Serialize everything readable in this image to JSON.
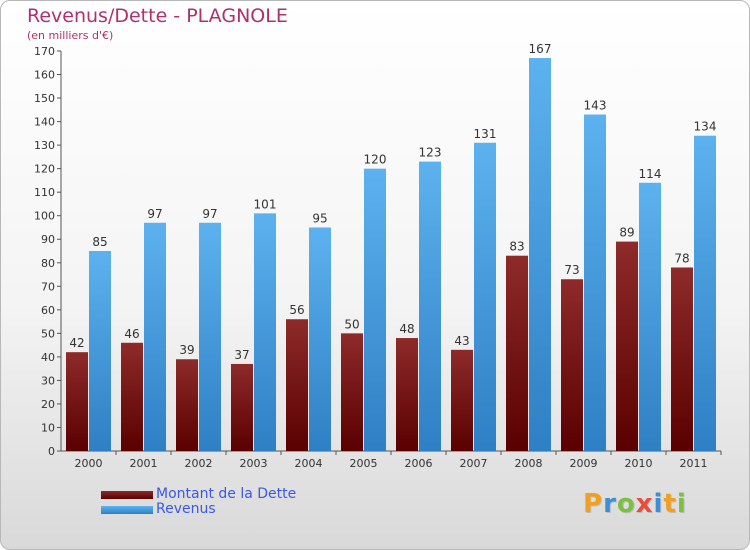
{
  "title": "Revenus/Dette - PLAGNOLE",
  "subtitle": "(en milliers d'€)",
  "legend": {
    "dette": "Montant de la Dette",
    "revenus": "Revenus"
  },
  "logo": {
    "text": "Proxiti",
    "letters": [
      "P",
      "r",
      "o",
      "x",
      "i",
      "t",
      "i"
    ],
    "colors": [
      "#f0a020",
      "#3a8fd6",
      "#7cc043",
      "#e84c3d",
      "#3a8fd6",
      "#f0a020",
      "#7cc043"
    ]
  },
  "colors": {
    "dette": "#7a1010",
    "revenus": "#4aa3e6",
    "title": "#b0306e",
    "legend_text": "#3a58e6"
  },
  "chart_data": {
    "type": "bar",
    "title": "Revenus/Dette - PLAGNOLE",
    "subtitle": "(en milliers d'€)",
    "categories": [
      "2000",
      "2001",
      "2002",
      "2003",
      "2004",
      "2005",
      "2006",
      "2007",
      "2008",
      "2009",
      "2010",
      "2011"
    ],
    "series": [
      {
        "name": "Montant de la Dette",
        "values": [
          42,
          46,
          39,
          37,
          56,
          50,
          48,
          43,
          83,
          73,
          89,
          78
        ]
      },
      {
        "name": "Revenus",
        "values": [
          85,
          97,
          97,
          101,
          95,
          120,
          123,
          131,
          167,
          143,
          114,
          134
        ]
      }
    ],
    "ylim": [
      0,
      170
    ],
    "yticks": [
      0,
      10,
      20,
      30,
      40,
      50,
      60,
      70,
      80,
      90,
      100,
      110,
      120,
      130,
      140,
      150,
      160,
      170
    ],
    "grid": false,
    "legend_position": "bottom-left",
    "xlabel": "",
    "ylabel": ""
  }
}
